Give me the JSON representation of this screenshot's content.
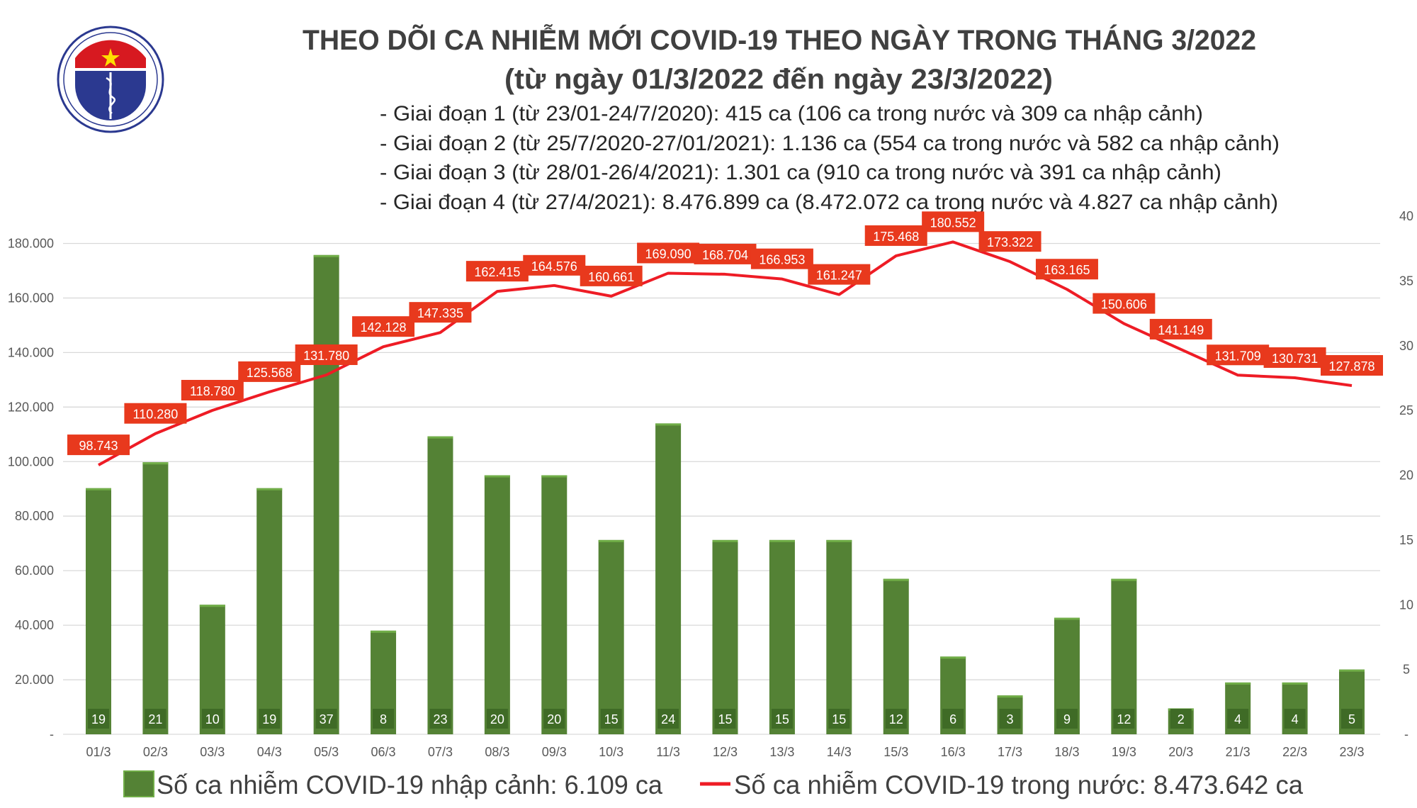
{
  "header": {
    "title": "THEO DÕI CA NHIỄM MỚI COVID-19 THEO NGÀY TRONG THÁNG 3/2022",
    "subtitle": "(từ ngày 01/3/2022 đến ngày 23/3/2022)",
    "phases": [
      "- Giai đoạn 1 (từ 23/01-24/7/2020): 415 ca (106 ca trong nước và 309 ca nhập cảnh)",
      "- Giai đoạn 2 (từ 25/7/2020-27/01/2021): 1.136 ca (554 ca trong nước và 582 ca nhập cảnh)",
      "- Giai đoạn 3 (từ 28/01-26/4/2021): 1.301 ca (910 ca trong nước và 391 ca nhập cảnh)",
      "- Giai đoạn 4 (từ 27/4/2021): 8.476.899 ca (8.472.072 ca trong nước và 4.827 ca nhập cảnh)"
    ]
  },
  "logo": {
    "top_text": "BỘ Y TẾ",
    "bottom_text": "MINISTRY OF HEALTH"
  },
  "colors": {
    "bar": "#548235",
    "bar_label_bg": "#3f6b26",
    "line": "#ee1c25",
    "label_bg": "#e8391d",
    "axis_text": "#595959",
    "grid": "#d9d9d9",
    "title": "#404040"
  },
  "chart_data": {
    "type": "bar+line",
    "categories": [
      "01/3",
      "02/3",
      "03/3",
      "04/3",
      "05/3",
      "06/3",
      "07/3",
      "08/3",
      "09/3",
      "10/3",
      "11/3",
      "12/3",
      "13/3",
      "14/3",
      "15/3",
      "16/3",
      "17/3",
      "18/3",
      "19/3",
      "20/3",
      "21/3",
      "22/3",
      "23/3"
    ],
    "series": [
      {
        "name": "Số ca nhiễm COVID-19 nhập cảnh: 6.109 ca",
        "type": "bar",
        "axis": "right",
        "values": [
          19,
          21,
          10,
          19,
          37,
          8,
          23,
          20,
          20,
          15,
          24,
          15,
          15,
          15,
          12,
          6,
          3,
          9,
          12,
          2,
          4,
          4,
          5
        ]
      },
      {
        "name": "Số ca nhiễm COVID-19 trong nước: 8.473.642 ca",
        "type": "line",
        "axis": "left",
        "values": [
          98743,
          110280,
          118780,
          125568,
          131780,
          142128,
          147335,
          162415,
          164576,
          160661,
          169090,
          168704,
          166953,
          161247,
          175468,
          180552,
          173322,
          163165,
          150606,
          141149,
          131709,
          130731,
          127878
        ],
        "labels": [
          "98.743",
          "110.280",
          "118.780",
          "125.568",
          "131.780",
          "142.128",
          "147.335",
          "162.415",
          "164.576",
          "160.661",
          "169.090",
          "168.704",
          "166.953",
          "161.247",
          "175.468",
          "180.552",
          "173.322",
          "163.165",
          "150.606",
          "141.149",
          "131.709",
          "130.731",
          "127.878"
        ]
      }
    ],
    "left_axis": {
      "ylim": [
        0,
        190000
      ],
      "ticks": [
        0,
        20000,
        40000,
        60000,
        80000,
        100000,
        120000,
        140000,
        160000,
        180000
      ],
      "tick_labels": [
        "-",
        "20.000",
        "40.000",
        "60.000",
        "80.000",
        "100.000",
        "120.000",
        "140.000",
        "160.000",
        "180.000"
      ]
    },
    "right_axis": {
      "ylim": [
        0,
        40
      ],
      "ticks": [
        0,
        5,
        10,
        15,
        20,
        25,
        30,
        35,
        40
      ],
      "tick_labels": [
        "-",
        "5",
        "10",
        "15",
        "20",
        "25",
        "30",
        "35",
        "40"
      ]
    },
    "grid": true,
    "legend_placement": "bottom"
  }
}
